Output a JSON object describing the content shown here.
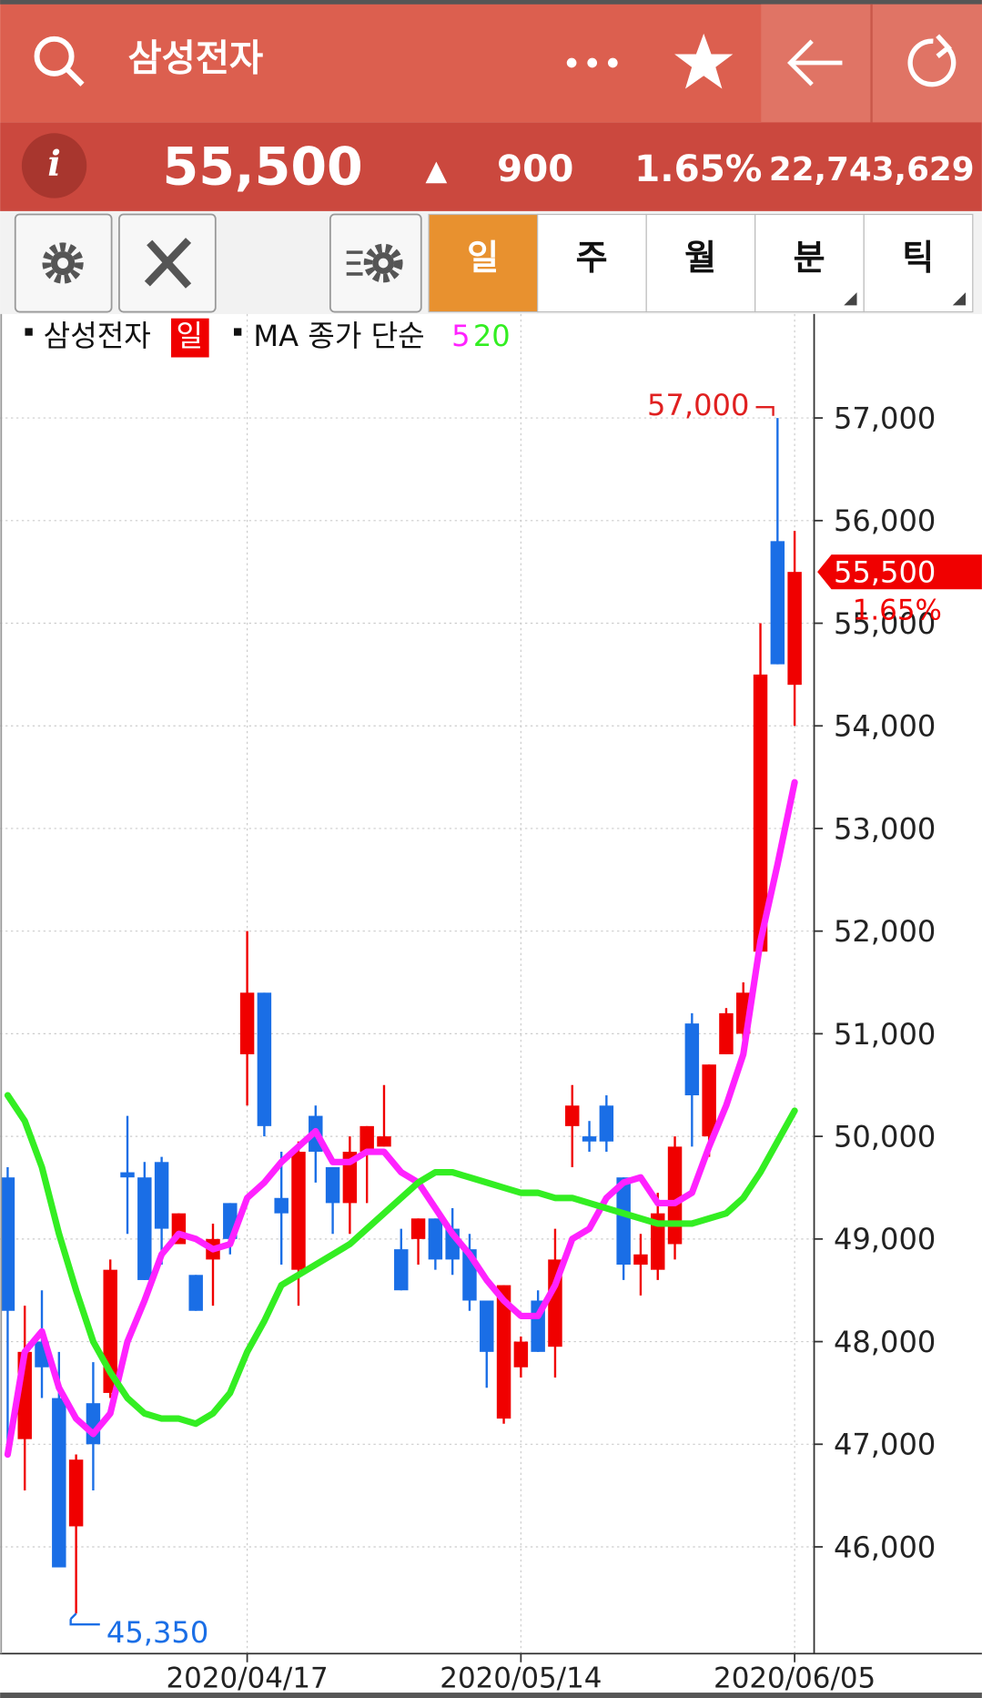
{
  "header": {
    "title": "삼성전자"
  },
  "quote": {
    "info_icon": "i",
    "price": "55,500",
    "direction": "▲",
    "change": "900",
    "change_rate": "1.65%",
    "volume": "22,743,629"
  },
  "toolbar": {
    "tabs": [
      "일",
      "주",
      "월",
      "분",
      "틱"
    ],
    "active_tab": 0
  },
  "chart_data": {
    "type": "candlestick",
    "legend": {
      "symbol": "삼성전자",
      "period": "일",
      "ma_label": "MA 종가 단순"
    },
    "categories": [
      null,
      null,
      null,
      null,
      null,
      null,
      null,
      null,
      null,
      null,
      null,
      null,
      null,
      null,
      "2020/04/17",
      null,
      null,
      null,
      null,
      null,
      null,
      null,
      null,
      null,
      null,
      null,
      null,
      null,
      null,
      null,
      "2020/05/14",
      null,
      null,
      null,
      null,
      null,
      null,
      null,
      null,
      null,
      null,
      null,
      null,
      null,
      null,
      null,
      "2020/06/05"
    ],
    "series": [
      {
        "name": "삼성전자",
        "up_color": "#f00000",
        "down_color": "#1a6ee6",
        "open": [
          49600,
          47050,
          48000,
          47450,
          46200,
          47400,
          47500,
          49650,
          49600,
          49750,
          48950,
          48650,
          48800,
          49350,
          50800,
          51400,
          49400,
          48700,
          50200,
          49700,
          49350,
          49850,
          49900,
          48900,
          49000,
          49200,
          49100,
          48900,
          48400,
          47250,
          47750,
          48400,
          47950,
          50100,
          50000,
          50300,
          49600,
          48750,
          48700,
          48950,
          51100,
          50000,
          50800,
          51000,
          51800,
          55800,
          54400
        ],
        "high": [
          49700,
          48350,
          48500,
          47900,
          46900,
          47800,
          48800,
          50200,
          49750,
          49800,
          49250,
          48650,
          49150,
          49350,
          52000,
          51400,
          49850,
          49950,
          50300,
          49700,
          50000,
          50100,
          50500,
          49100,
          49200,
          49200,
          49300,
          49050,
          48400,
          48550,
          48050,
          48500,
          49100,
          50500,
          50150,
          50400,
          49600,
          49050,
          49450,
          50000,
          51200,
          50700,
          51250,
          51500,
          55000,
          57000,
          55900
        ],
        "low": [
          46900,
          46550,
          47450,
          45800,
          45350,
          46550,
          47450,
          49050,
          48600,
          48750,
          48950,
          48300,
          48350,
          48850,
          50300,
          50000,
          48750,
          48350,
          49550,
          49050,
          49050,
          49350,
          49900,
          48500,
          48750,
          48700,
          48650,
          48300,
          47550,
          47200,
          47650,
          47900,
          47650,
          49700,
          49850,
          49850,
          48600,
          48450,
          48600,
          48800,
          49900,
          49800,
          50800,
          50800,
          51800,
          54600,
          54000
        ],
        "close": [
          48300,
          47900,
          47750,
          45800,
          46850,
          47000,
          48700,
          49600,
          48600,
          49100,
          49250,
          48300,
          49000,
          49000,
          51400,
          50100,
          49250,
          49850,
          49850,
          49350,
          49850,
          50100,
          50000,
          48500,
          49200,
          48800,
          48800,
          48400,
          47900,
          48550,
          48000,
          47900,
          48800,
          50300,
          49950,
          49950,
          48750,
          48850,
          49250,
          49900,
          50400,
          50700,
          51200,
          51400,
          54500,
          54600,
          55500
        ]
      },
      {
        "name": "5",
        "color": "#ff22ff",
        "values": [
          46900,
          47900,
          48100,
          47550,
          47250,
          47100,
          47300,
          48000,
          48400,
          48850,
          49050,
          49000,
          48900,
          48950,
          49400,
          49550,
          49750,
          49900,
          50050,
          49750,
          49750,
          49850,
          49850,
          49650,
          49550,
          49300,
          49050,
          48850,
          48600,
          48400,
          48250,
          48250,
          48550,
          49000,
          49100,
          49400,
          49550,
          49600,
          49350,
          49350,
          49450,
          49900,
          50300,
          50800,
          51900,
          52650,
          53450
        ]
      },
      {
        "name": "20",
        "color": "#33ee22",
        "values": [
          50400,
          50150,
          49700,
          49050,
          48500,
          48000,
          47700,
          47450,
          47300,
          47250,
          47250,
          47200,
          47300,
          47500,
          47900,
          48200,
          48550,
          48650,
          48750,
          48850,
          48950,
          49100,
          49250,
          49400,
          49550,
          49650,
          49650,
          49600,
          49550,
          49500,
          49450,
          49450,
          49400,
          49400,
          49350,
          49300,
          49250,
          49200,
          49150,
          49150,
          49150,
          49200,
          49250,
          49400,
          49650,
          49950,
          50250
        ]
      }
    ],
    "ylim": [
      44960,
      57960
    ],
    "yticks": [
      {
        "value": 46000,
        "label": "46,000"
      },
      {
        "value": 47000,
        "label": "47,000"
      },
      {
        "value": 48000,
        "label": "48,000"
      },
      {
        "value": 49000,
        "label": "49,000"
      },
      {
        "value": 50000,
        "label": "50,000"
      },
      {
        "value": 51000,
        "label": "51,000"
      },
      {
        "value": 52000,
        "label": "52,000"
      },
      {
        "value": 53000,
        "label": "53,000"
      },
      {
        "value": 54000,
        "label": "54,000"
      },
      {
        "value": 55000,
        "label": "55,000"
      },
      {
        "value": 56000,
        "label": "56,000"
      },
      {
        "value": 57000,
        "label": "57,000"
      }
    ],
    "grid": true,
    "annotations": [
      {
        "label": "57,000",
        "value": 57000,
        "candle": 45,
        "color": "#e02020",
        "side": "high"
      },
      {
        "label": "45,350",
        "value": 45350,
        "candle": 4,
        "color": "#1a6ee6",
        "side": "low"
      }
    ],
    "last_price": {
      "label": "55,500",
      "value": 55500,
      "change_label": "1.65%",
      "color": "#f00000"
    }
  }
}
